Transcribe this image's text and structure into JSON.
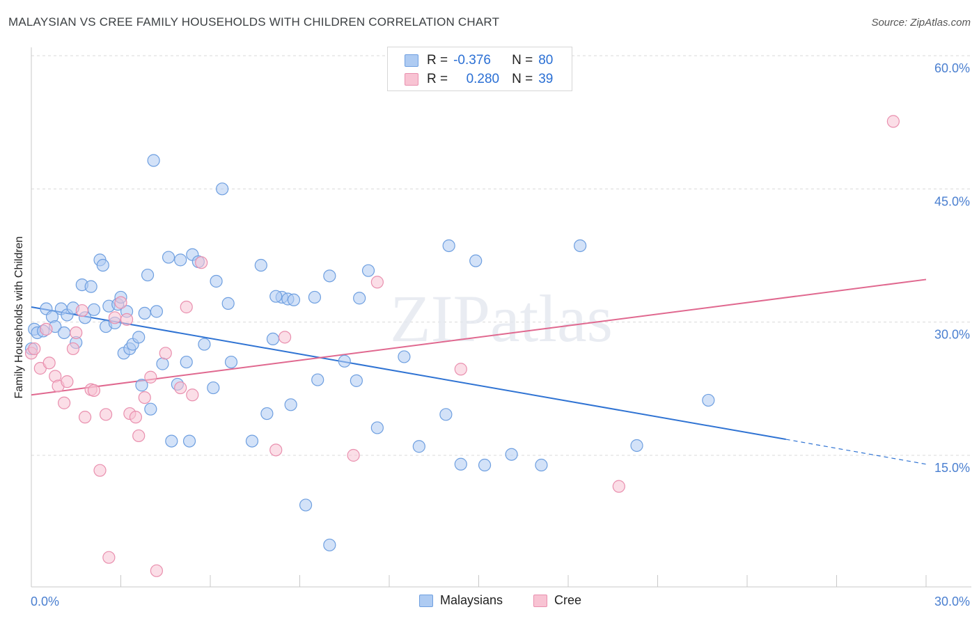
{
  "title": "MALAYSIAN VS CREE FAMILY HOUSEHOLDS WITH CHILDREN CORRELATION CHART",
  "source": "Source: ZipAtlas.com",
  "watermark": "ZIPatlas",
  "legend": {
    "rows": [
      {
        "r_label": "R =",
        "r_value": "-0.376",
        "n_label": "N =",
        "n_value": "80"
      },
      {
        "r_label": "R =",
        "r_value": "0.280",
        "n_label": "N =",
        "n_value": "39"
      }
    ]
  },
  "colors": {
    "blue_fill": "#aecbf2",
    "blue_stroke": "#6e9fe0",
    "blue_line": "#2f73d3",
    "pink_fill": "#f8c3d3",
    "pink_stroke": "#e98fae",
    "pink_line": "#e0688f",
    "tick_text": "#4a7fd0",
    "grid": "#d9d9d9"
  },
  "chart_data": {
    "type": "scatter",
    "title": "MALAYSIAN VS CREE FAMILY HOUSEHOLDS WITH CHILDREN CORRELATION CHART",
    "xlabel": "",
    "ylabel": "Family Households with Children",
    "xlim": [
      0,
      30
    ],
    "ylim": [
      0,
      63
    ],
    "y_ticks": [
      15,
      30,
      45,
      60
    ],
    "y_tick_labels": [
      "15.0%",
      "30.0%",
      "45.0%",
      "60.0%"
    ],
    "x_tick_labels": [
      "0.0%",
      "30.0%"
    ],
    "series": [
      {
        "name": "Malaysians",
        "trend": {
          "x0": 0,
          "y0": 31.7,
          "x1": 25.3,
          "y1": 16.8,
          "dashed_to_x": 30,
          "dashed_to_y": 14.0
        },
        "points": [
          [
            0.0,
            27.0
          ],
          [
            0.1,
            29.2
          ],
          [
            0.2,
            28.8
          ],
          [
            0.4,
            29.0
          ],
          [
            0.5,
            31.5
          ],
          [
            0.7,
            30.6
          ],
          [
            0.8,
            29.5
          ],
          [
            1.0,
            31.5
          ],
          [
            1.1,
            28.8
          ],
          [
            1.2,
            30.8
          ],
          [
            1.4,
            31.6
          ],
          [
            1.5,
            27.7
          ],
          [
            1.7,
            34.2
          ],
          [
            1.8,
            30.5
          ],
          [
            2.0,
            34.0
          ],
          [
            2.1,
            31.4
          ],
          [
            2.3,
            37.0
          ],
          [
            2.4,
            36.4
          ],
          [
            2.5,
            29.5
          ],
          [
            2.6,
            31.8
          ],
          [
            2.8,
            29.9
          ],
          [
            2.9,
            32.0
          ],
          [
            3.0,
            32.8
          ],
          [
            3.1,
            26.5
          ],
          [
            3.2,
            31.2
          ],
          [
            3.3,
            27.0
          ],
          [
            3.4,
            27.5
          ],
          [
            3.6,
            28.3
          ],
          [
            3.7,
            22.9
          ],
          [
            3.8,
            31.0
          ],
          [
            3.9,
            35.3
          ],
          [
            4.0,
            20.2
          ],
          [
            4.1,
            48.2
          ],
          [
            4.2,
            31.2
          ],
          [
            4.4,
            25.3
          ],
          [
            4.6,
            37.3
          ],
          [
            4.7,
            16.6
          ],
          [
            4.9,
            23.0
          ],
          [
            5.0,
            37.0
          ],
          [
            5.2,
            25.5
          ],
          [
            5.3,
            16.6
          ],
          [
            5.4,
            37.6
          ],
          [
            5.6,
            36.8
          ],
          [
            5.8,
            27.5
          ],
          [
            6.1,
            22.6
          ],
          [
            6.2,
            34.6
          ],
          [
            6.4,
            45.0
          ],
          [
            6.6,
            32.1
          ],
          [
            6.7,
            25.5
          ],
          [
            7.4,
            16.6
          ],
          [
            7.7,
            36.4
          ],
          [
            7.9,
            19.7
          ],
          [
            8.1,
            28.1
          ],
          [
            8.4,
            32.8
          ],
          [
            8.6,
            32.6
          ],
          [
            8.7,
            20.7
          ],
          [
            8.8,
            32.5
          ],
          [
            9.2,
            9.4
          ],
          [
            9.5,
            32.8
          ],
          [
            9.6,
            23.5
          ],
          [
            10.0,
            4.9
          ],
          [
            10.0,
            35.2
          ],
          [
            10.5,
            25.6
          ],
          [
            10.9,
            23.4
          ],
          [
            11.0,
            32.7
          ],
          [
            11.3,
            35.8
          ],
          [
            11.6,
            18.1
          ],
          [
            12.5,
            26.1
          ],
          [
            13.0,
            16.0
          ],
          [
            13.9,
            19.6
          ],
          [
            14.0,
            38.6
          ],
          [
            14.4,
            14.0
          ],
          [
            14.9,
            36.9
          ],
          [
            16.1,
            15.1
          ],
          [
            17.1,
            13.9
          ],
          [
            18.4,
            38.6
          ],
          [
            20.3,
            16.1
          ],
          [
            22.7,
            21.2
          ],
          [
            8.2,
            32.9
          ],
          [
            15.2,
            13.9
          ]
        ]
      },
      {
        "name": "Cree",
        "trend": {
          "x0": 0,
          "y0": 21.8,
          "x1": 30,
          "y1": 34.8
        },
        "points": [
          [
            0.0,
            26.5
          ],
          [
            0.1,
            27.0
          ],
          [
            0.3,
            24.8
          ],
          [
            0.5,
            29.2
          ],
          [
            0.6,
            25.4
          ],
          [
            0.8,
            23.9
          ],
          [
            0.9,
            22.8
          ],
          [
            1.1,
            20.9
          ],
          [
            1.2,
            23.3
          ],
          [
            1.4,
            27.0
          ],
          [
            1.5,
            28.8
          ],
          [
            1.7,
            31.3
          ],
          [
            1.8,
            19.3
          ],
          [
            2.0,
            22.4
          ],
          [
            2.1,
            22.3
          ],
          [
            2.3,
            13.3
          ],
          [
            2.5,
            19.6
          ],
          [
            2.6,
            3.5
          ],
          [
            2.8,
            30.5
          ],
          [
            3.0,
            32.2
          ],
          [
            3.2,
            30.3
          ],
          [
            3.3,
            19.7
          ],
          [
            3.5,
            19.3
          ],
          [
            3.6,
            17.2
          ],
          [
            3.8,
            21.5
          ],
          [
            4.0,
            23.8
          ],
          [
            4.2,
            2.0
          ],
          [
            4.5,
            26.5
          ],
          [
            5.0,
            22.6
          ],
          [
            5.2,
            31.7
          ],
          [
            5.4,
            21.8
          ],
          [
            5.7,
            36.7
          ],
          [
            8.2,
            15.6
          ],
          [
            8.5,
            28.3
          ],
          [
            10.8,
            15.0
          ],
          [
            11.6,
            34.5
          ],
          [
            14.4,
            24.7
          ],
          [
            19.7,
            11.5
          ],
          [
            28.9,
            52.6
          ]
        ]
      }
    ]
  }
}
